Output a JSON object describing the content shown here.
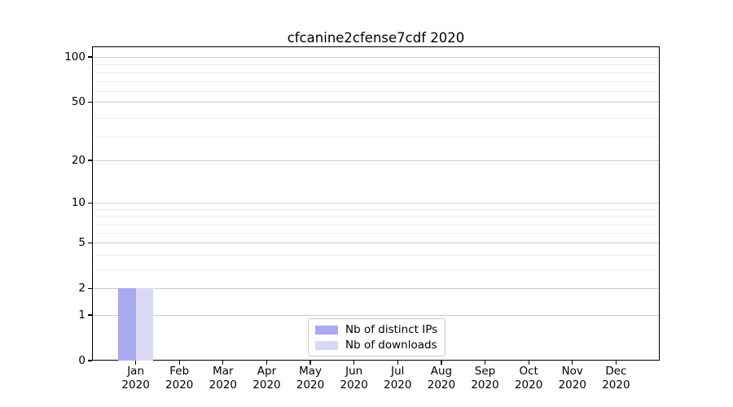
{
  "figure": {
    "title": "cfcanine2cfense7cdf 2020"
  },
  "legend": {
    "items": [
      {
        "label": "Nb of distinct IPs",
        "color": "#a9a9ef"
      },
      {
        "label": "Nb of downloads",
        "color": "#d9d9f7"
      }
    ],
    "position": "lower center"
  },
  "chart_data": {
    "type": "bar",
    "title": "cfcanine2cfense7cdf 2020",
    "categories": [
      "Jan",
      "Feb",
      "Mar",
      "Apr",
      "May",
      "Jun",
      "Jul",
      "Aug",
      "Sep",
      "Oct",
      "Nov",
      "Dec"
    ],
    "category_year": "2020",
    "series": [
      {
        "name": "Nb of distinct IPs",
        "color": "#a9a9ef",
        "values": [
          2,
          0,
          0,
          0,
          0,
          0,
          0,
          0,
          0,
          0,
          0,
          0
        ]
      },
      {
        "name": "Nb of downloads",
        "color": "#d9d9f7",
        "values": [
          2,
          0,
          0,
          0,
          0,
          0,
          0,
          0,
          0,
          0,
          0,
          0
        ]
      }
    ],
    "xlabel": "",
    "ylabel": "",
    "yscale": "log1p",
    "yticks_major": [
      0,
      1,
      2,
      5,
      10,
      20,
      50,
      100
    ],
    "yticks_minor": [
      3,
      4,
      6,
      7,
      8,
      9,
      19,
      29,
      39,
      59,
      69,
      79,
      89
    ],
    "ylim": [
      0,
      117.6
    ],
    "grid": "horizontal major+minor",
    "legend_position": "lower center"
  },
  "colors": {
    "spine": "#000000",
    "major_grid": "#cdcdcd",
    "minor_grid": "#ececec",
    "background": "#ffffff",
    "text": "#000000",
    "legend_border": "#cccccc"
  }
}
